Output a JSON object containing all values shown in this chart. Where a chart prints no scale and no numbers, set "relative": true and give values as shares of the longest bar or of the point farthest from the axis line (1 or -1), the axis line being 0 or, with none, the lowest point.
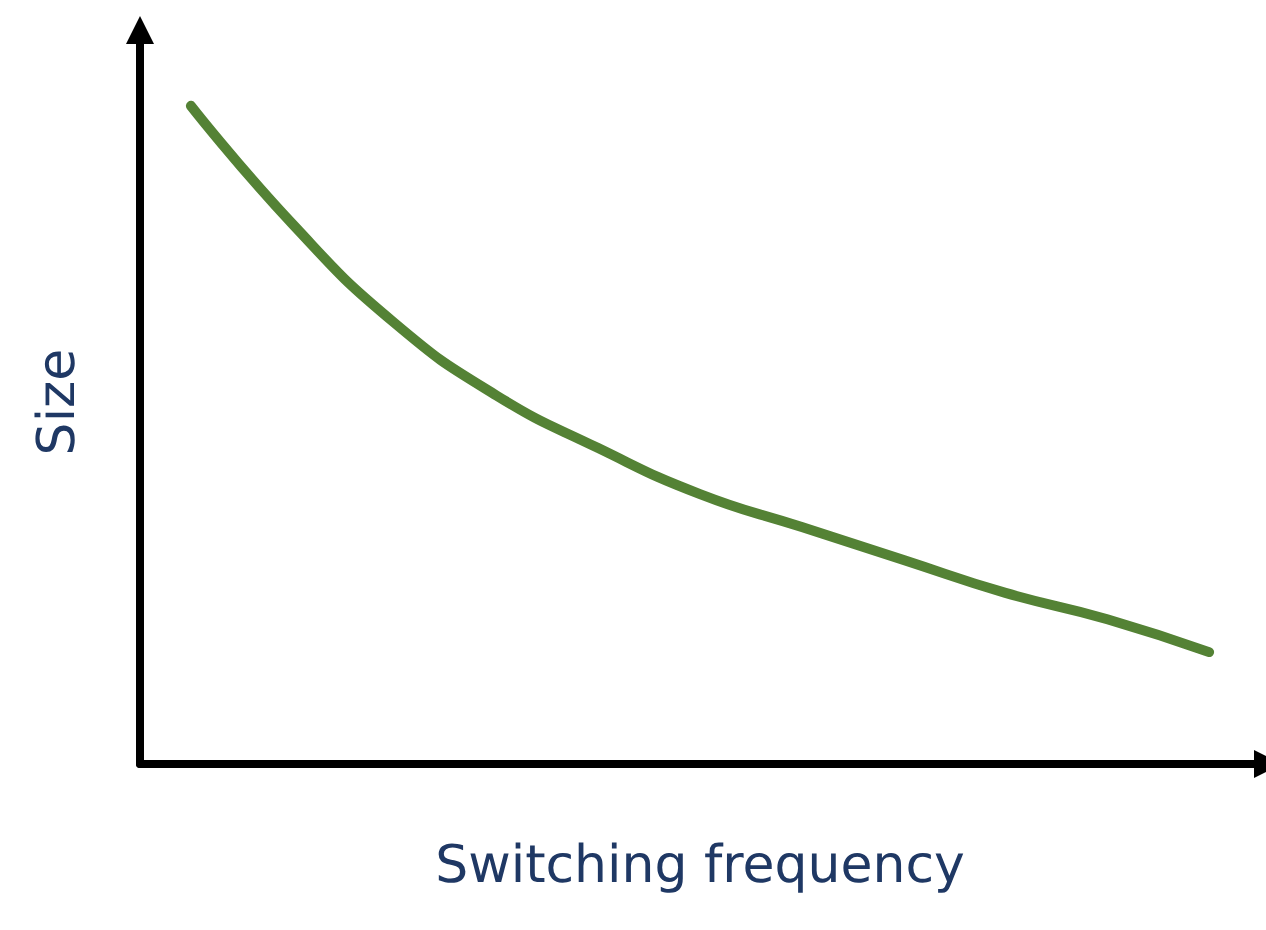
{
  "chart_data": {
    "type": "line",
    "relative": true,
    "xlabel": "Switching frequency",
    "ylabel": "Size",
    "categories": [
      null,
      null,
      null,
      null,
      null,
      null,
      null,
      null,
      null,
      null,
      null
    ],
    "series": [
      {
        "color": "#548235",
        "values": [
          1,
          0.82,
          0.67,
          0.56,
          0.48,
          0.41,
          0.36,
          0.31,
          0.26,
          0.22,
          0.17
        ]
      }
    ],
    "grid": false,
    "marker": "none",
    "line_style": "solid"
  }
}
